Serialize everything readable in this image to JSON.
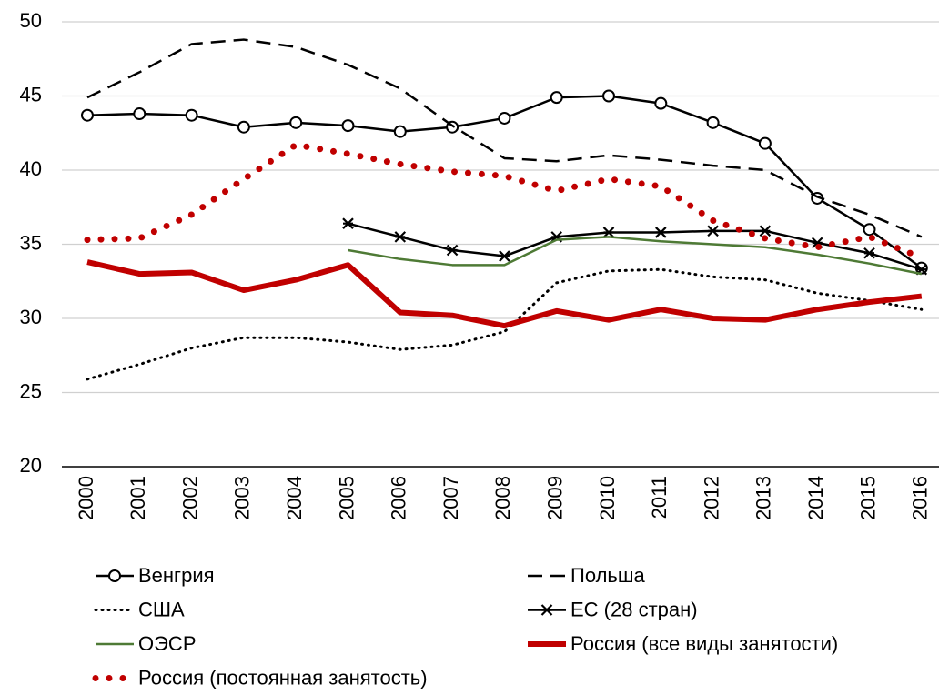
{
  "chart_data": {
    "type": "line",
    "categories": [
      "2000",
      "2001",
      "2002",
      "2003",
      "2004",
      "2005",
      "2006",
      "2007",
      "2008",
      "2009",
      "2010",
      "2011",
      "2012",
      "2013",
      "2014",
      "2015",
      "2016"
    ],
    "ylim": [
      20,
      50
    ],
    "yticks": [
      20,
      25,
      30,
      35,
      40,
      45,
      50
    ],
    "grid": true,
    "series": [
      {
        "name": "Венгрия",
        "color": "#000000",
        "line_style": "solid",
        "marker": "circle",
        "width": 2.5,
        "values": [
          43.7,
          43.8,
          43.7,
          42.9,
          43.2,
          43.0,
          42.6,
          42.9,
          43.5,
          44.9,
          45.0,
          44.5,
          43.2,
          41.8,
          38.1,
          36.0,
          33.4
        ]
      },
      {
        "name": "Польша",
        "color": "#000000",
        "line_style": "dashed",
        "marker": "none",
        "width": 2.5,
        "values": [
          44.9,
          46.6,
          48.5,
          48.8,
          48.3,
          47.1,
          45.5,
          43.0,
          40.8,
          40.6,
          41.0,
          40.7,
          40.3,
          40.0,
          38.2,
          37.0,
          35.5
        ]
      },
      {
        "name": "США",
        "color": "#000000",
        "line_style": "dotted",
        "marker": "none",
        "width": 2.5,
        "values": [
          25.9,
          26.9,
          28.0,
          28.7,
          28.7,
          28.4,
          27.9,
          28.2,
          29.1,
          32.4,
          33.2,
          33.3,
          32.8,
          32.6,
          31.7,
          31.2,
          30.6
        ]
      },
      {
        "name": "ЕС (28 стран)",
        "color": "#000000",
        "line_style": "solid",
        "marker": "x",
        "width": 2.5,
        "values": [
          null,
          null,
          null,
          null,
          null,
          36.4,
          35.5,
          34.6,
          34.2,
          35.5,
          35.8,
          35.8,
          35.9,
          35.9,
          35.1,
          34.4,
          33.3
        ]
      },
      {
        "name": "ОЭСР",
        "color": "#4e7a35",
        "line_style": "solid",
        "marker": "none",
        "width": 2.5,
        "values": [
          null,
          null,
          null,
          null,
          null,
          34.6,
          34.0,
          33.6,
          33.6,
          35.3,
          35.5,
          35.2,
          35.0,
          34.8,
          34.3,
          33.7,
          33.0
        ]
      },
      {
        "name": "Россия (все виды занятости)",
        "color": "#c00000",
        "line_style": "solid",
        "marker": "none",
        "width": 6,
        "values": [
          33.8,
          33.0,
          33.1,
          31.9,
          32.6,
          33.6,
          30.4,
          30.2,
          29.5,
          30.5,
          29.9,
          30.6,
          30.0,
          29.9,
          30.6,
          31.1,
          31.5
        ]
      },
      {
        "name": "Россия (постоянная занятость)",
        "color": "#c00000",
        "line_style": "round-dotted",
        "marker": "none",
        "width": 6,
        "values": [
          35.3,
          35.4,
          37.0,
          39.4,
          41.7,
          41.1,
          40.4,
          39.9,
          39.6,
          38.6,
          39.4,
          38.9,
          36.6,
          35.4,
          34.8,
          35.5,
          34.1
        ]
      }
    ]
  }
}
